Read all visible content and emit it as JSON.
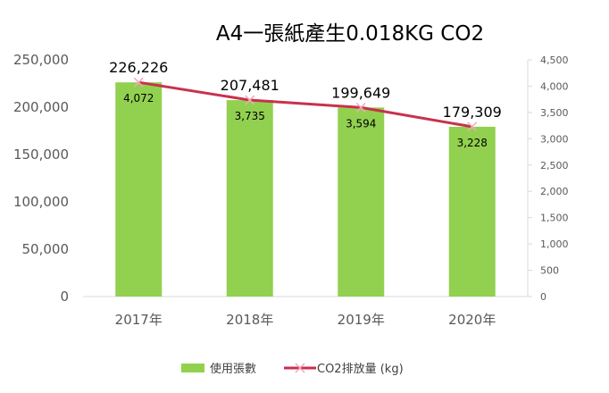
{
  "chart_data": {
    "type": "bar",
    "title": "A4一張紙產生0.018KG CO2",
    "categories": [
      "2017年",
      "2018年",
      "2019年",
      "2020年"
    ],
    "series": [
      {
        "name": "使用張數",
        "type": "bar",
        "axis": "left",
        "values": [
          226226,
          207481,
          199649,
          179309
        ],
        "labels": [
          "226,226",
          "207,481",
          "199,649",
          "179,309"
        ],
        "color": "#92d050"
      },
      {
        "name": "CO2排放量 (kg)",
        "type": "line",
        "axis": "right",
        "values": [
          4072,
          3735,
          3594,
          3228
        ],
        "labels": [
          "4,072",
          "3,735",
          "3,594",
          "3,228"
        ],
        "color": "#c9314d"
      }
    ],
    "y_left": {
      "ylim": [
        0,
        250000
      ],
      "ticks": [
        "0",
        "50,000",
        "100,000",
        "150,000",
        "200,000",
        "250,000"
      ]
    },
    "y_right": {
      "ylim": [
        0,
        4500
      ],
      "ticks": [
        "0",
        "500",
        "1,000",
        "1,500",
        "2,000",
        "2,500",
        "3,000",
        "3,500",
        "4,000",
        "4,500"
      ]
    },
    "grid": false,
    "legend": "bottom"
  }
}
